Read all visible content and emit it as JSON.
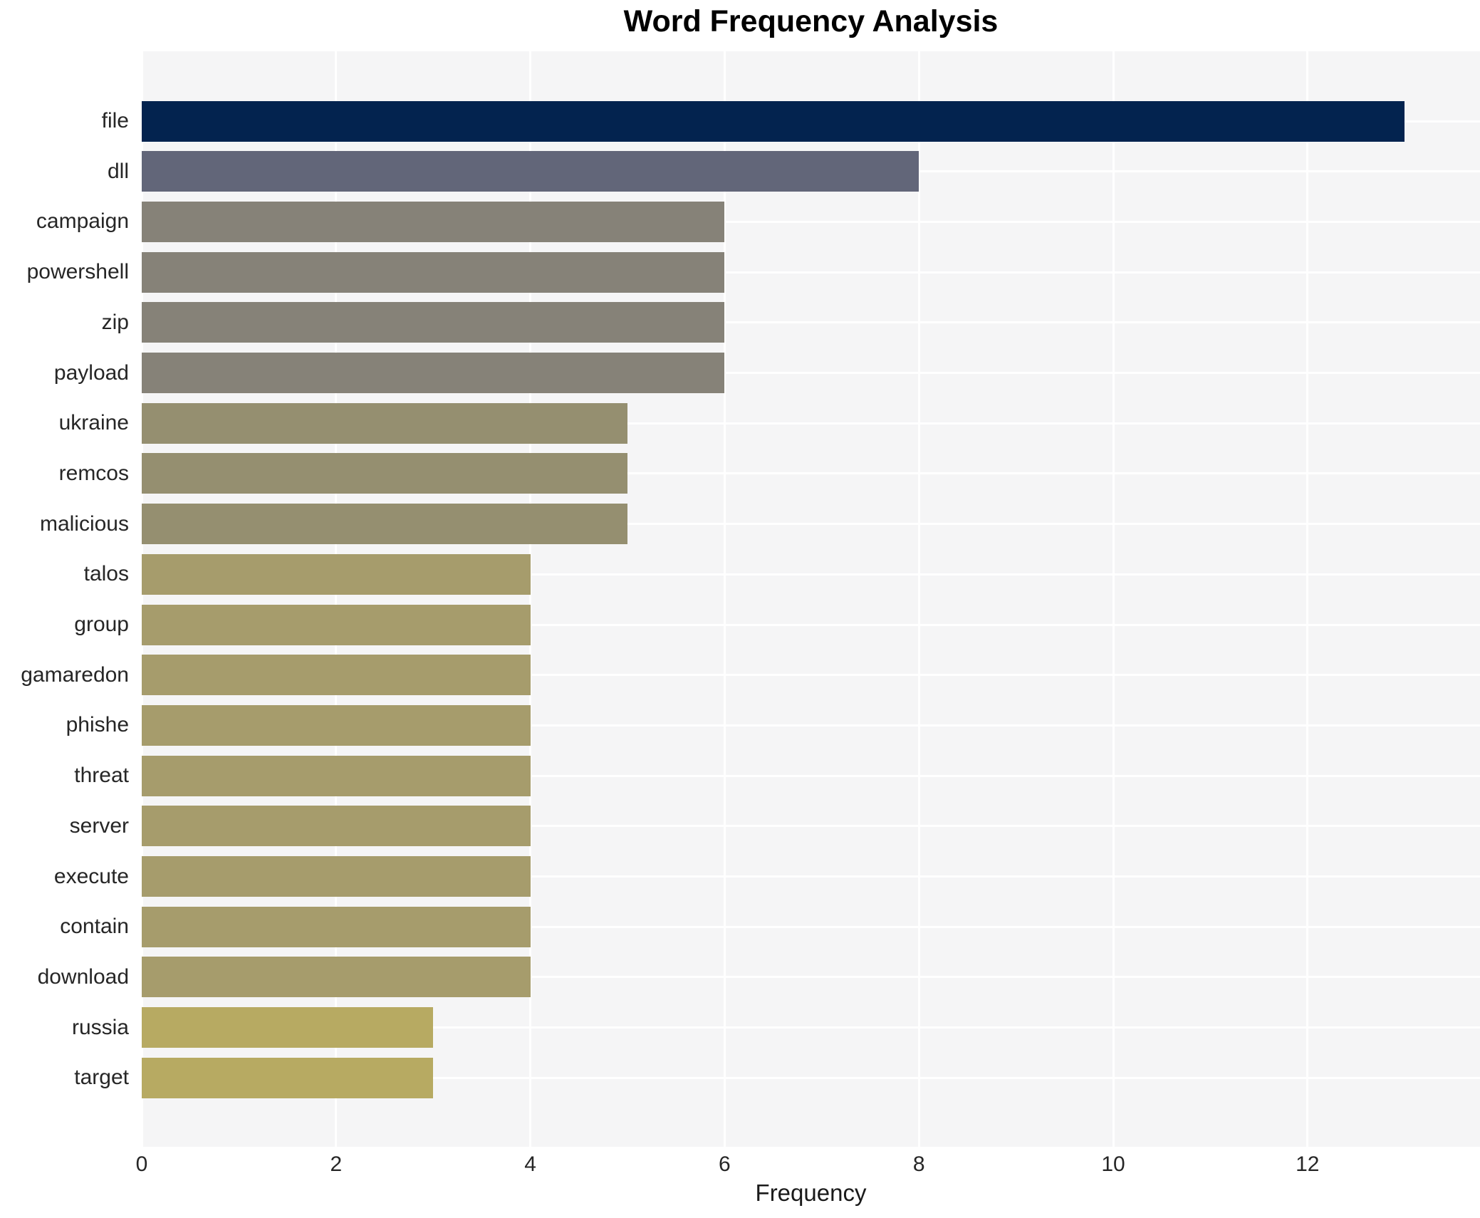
{
  "chart_data": {
    "type": "bar",
    "orientation": "horizontal",
    "title": "Word Frequency Analysis",
    "xlabel": "Frequency",
    "ylabel": "",
    "categories": [
      "file",
      "dll",
      "campaign",
      "powershell",
      "zip",
      "payload",
      "ukraine",
      "remcos",
      "malicious",
      "talos",
      "group",
      "gamaredon",
      "phishe",
      "threat",
      "server",
      "execute",
      "contain",
      "download",
      "russia",
      "target"
    ],
    "values": [
      13,
      8,
      6,
      6,
      6,
      6,
      5,
      5,
      5,
      4,
      4,
      4,
      4,
      4,
      4,
      4,
      4,
      4,
      3,
      3
    ],
    "bar_colors": [
      "#03234f",
      "#626679",
      "#868278",
      "#868278",
      "#868278",
      "#868278",
      "#958f70",
      "#958f70",
      "#958f70",
      "#a69c6c",
      "#a69c6c",
      "#a69c6c",
      "#a69c6c",
      "#a69c6c",
      "#a69c6c",
      "#a69c6c",
      "#a69c6c",
      "#a69c6c",
      "#b7aa62",
      "#b7aa62"
    ],
    "x_ticks": [
      0,
      2,
      4,
      6,
      8,
      10,
      12
    ],
    "xlim": [
      0,
      13.78
    ],
    "legend": "none",
    "grid": "on",
    "plot_background_color": "#f5f5f6",
    "gridline_color": "#ffffff",
    "title_color": "#000000",
    "tick_label_color": "#262626"
  }
}
